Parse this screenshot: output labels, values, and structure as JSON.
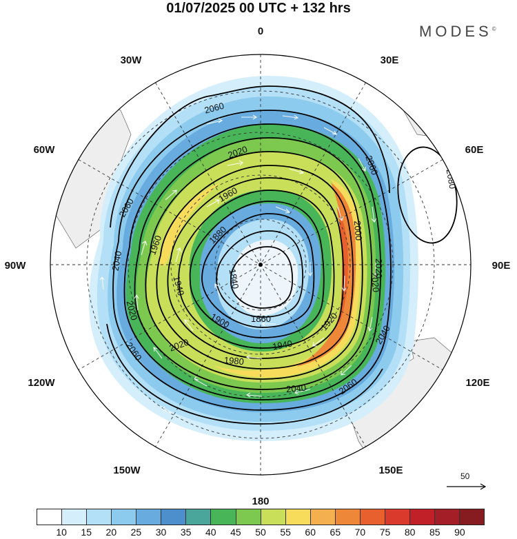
{
  "title": "01/07/2025  00 UTC  + 132 hrs",
  "brand": "MODES",
  "brand_mark": "©",
  "longitude_labels": {
    "lon_0": "0",
    "lon_30e": "30E",
    "lon_60e": "60E",
    "lon_90e": "90E",
    "lon_120e": "120E",
    "lon_150e": "150E",
    "lon_180": "180",
    "lon_150w": "150W",
    "lon_120w": "120W",
    "lon_90w": "90W",
    "lon_60w": "60W",
    "lon_30w": "30W"
  },
  "contour_labels": [
    "2060",
    "2060",
    "2060",
    "2040",
    "2020",
    "2020",
    "2020",
    "2020",
    "1960",
    "1960",
    "1880",
    "1840",
    "1860",
    "1900",
    "1940",
    "1920",
    "1940",
    "1980",
    "2040",
    "2060",
    "2040",
    "2020",
    "2000",
    "2060",
    "2080"
  ],
  "reference_vector": "50",
  "colorbar": {
    "ticks": [
      "10",
      "15",
      "20",
      "25",
      "30",
      "35",
      "40",
      "45",
      "50",
      "55",
      "60",
      "65",
      "70",
      "75",
      "80",
      "85",
      "90"
    ],
    "colors": [
      "#ffffff",
      "#d4effb",
      "#b4e0f7",
      "#8ccbee",
      "#68acdf",
      "#4c8fcc",
      "#4aa59a",
      "#48b558",
      "#7dc84e",
      "#c9df5a",
      "#f7dc5b",
      "#f4b04e",
      "#ee8738",
      "#e8602e",
      "#da3a2c",
      "#c12029",
      "#a31e26",
      "#861c20"
    ]
  }
}
